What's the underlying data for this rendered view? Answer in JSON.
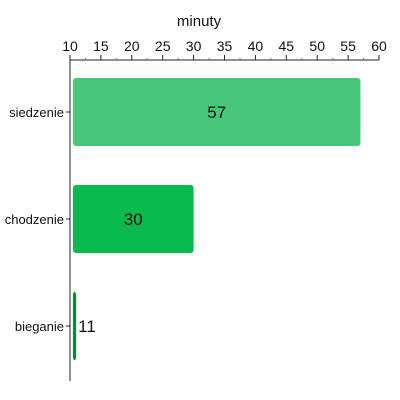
{
  "chart_data": {
    "type": "bar",
    "orientation": "horizontal",
    "xlabel": "minuty",
    "xlim": [
      10,
      60
    ],
    "major_ticks": [
      10,
      15,
      20,
      25,
      30,
      35,
      40,
      45,
      50,
      55,
      60
    ],
    "tick_labels": [
      "10",
      "15",
      "20",
      "25",
      "30",
      "35",
      "40",
      "45",
      "50",
      "55",
      "60"
    ],
    "minor_ticks": [
      12.5,
      17.5,
      22.5,
      27.5,
      32.5,
      37.5,
      42.5,
      47.5,
      52.5,
      57.5
    ],
    "categories": [
      "siedzenie",
      "chodzenie",
      "bieganie"
    ],
    "values": [
      57,
      30,
      11
    ],
    "data_labels": [
      "57",
      "30",
      "11"
    ],
    "colors": [
      "#47c779",
      "#08b94d",
      "#0a8a3a"
    ],
    "axis_position": "top",
    "grid": false,
    "minor_tick_color": "#e24b4b"
  }
}
